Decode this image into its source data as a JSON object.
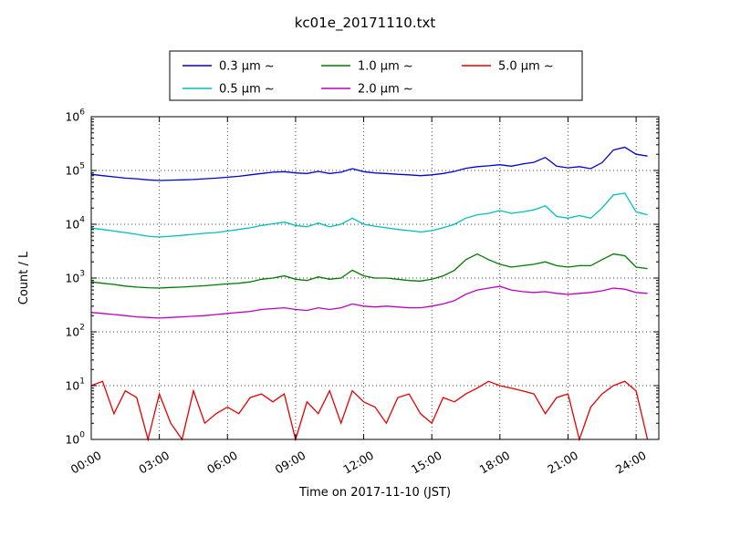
{
  "chart_data": {
    "type": "line",
    "title": "kc01e_20171110.txt",
    "xlabel": "Time on 2017-11-10 (JST)",
    "ylabel": "Count / L",
    "y_scale": "log",
    "ylim": [
      1,
      1000000
    ],
    "xlim": [
      0,
      25
    ],
    "grid": true,
    "legend_position": "top-center",
    "y_tick_exponents": [
      0,
      1,
      2,
      3,
      4,
      5,
      6
    ],
    "x_ticks": [
      {
        "value": 0,
        "label": "00:00"
      },
      {
        "value": 3,
        "label": "03:00"
      },
      {
        "value": 6,
        "label": "06:00"
      },
      {
        "value": 9,
        "label": "09:00"
      },
      {
        "value": 12,
        "label": "12:00"
      },
      {
        "value": 15,
        "label": "15:00"
      },
      {
        "value": 18,
        "label": "18:00"
      },
      {
        "value": 21,
        "label": "21:00"
      },
      {
        "value": 24,
        "label": "24:00"
      }
    ],
    "x": [
      0,
      0.5,
      1,
      1.5,
      2,
      2.5,
      3,
      3.5,
      4,
      4.5,
      5,
      5.5,
      6,
      6.5,
      7,
      7.5,
      8,
      8.5,
      9,
      9.5,
      10,
      10.5,
      11,
      11.5,
      12,
      12.5,
      13,
      13.5,
      14,
      14.5,
      15,
      15.5,
      16,
      16.5,
      17,
      17.5,
      18,
      18.5,
      19,
      19.5,
      20,
      20.5,
      21,
      21.5,
      22,
      22.5,
      23,
      23.5,
      24,
      24.5
    ],
    "series": [
      {
        "name": "0.3 µm ~",
        "color": "#0000dd",
        "values": [
          85000,
          80000,
          76000,
          72000,
          70000,
          67000,
          65000,
          66000,
          67000,
          68000,
          70000,
          72000,
          75000,
          78000,
          83000,
          88000,
          93000,
          95000,
          90000,
          88000,
          96000,
          88000,
          93000,
          108000,
          95000,
          90000,
          88000,
          85000,
          83000,
          80000,
          83000,
          88000,
          96000,
          110000,
          118000,
          122000,
          128000,
          120000,
          132000,
          142000,
          175000,
          120000,
          112000,
          118000,
          108000,
          140000,
          240000,
          270000,
          200000,
          185000
        ]
      },
      {
        "name": "0.5 µm ~",
        "color": "#00bfbf",
        "values": [
          8500,
          8000,
          7500,
          7000,
          6500,
          6000,
          5800,
          6000,
          6200,
          6500,
          6800,
          7000,
          7500,
          8000,
          8600,
          9500,
          10200,
          11000,
          9500,
          9000,
          10500,
          9000,
          10000,
          13000,
          10000,
          9200,
          8600,
          8000,
          7600,
          7200,
          7600,
          8600,
          10000,
          13000,
          15000,
          16000,
          18000,
          16000,
          17000,
          18500,
          22000,
          14000,
          13000,
          14500,
          13000,
          20000,
          35000,
          38000,
          17000,
          15000
        ]
      },
      {
        "name": "1.0 µm ~",
        "color": "#007a00",
        "values": [
          850,
          800,
          760,
          710,
          680,
          660,
          650,
          670,
          680,
          700,
          720,
          750,
          780,
          800,
          850,
          950,
          1000,
          1100,
          950,
          900,
          1050,
          950,
          1000,
          1400,
          1100,
          1000,
          1000,
          950,
          900,
          880,
          950,
          1100,
          1400,
          2200,
          2800,
          2200,
          1800,
          1600,
          1700,
          1800,
          2000,
          1700,
          1600,
          1700,
          1700,
          2200,
          2800,
          2600,
          1600,
          1500
        ]
      },
      {
        "name": "2.0 µm ~",
        "color": "#bf00bf",
        "values": [
          230,
          220,
          210,
          200,
          190,
          185,
          180,
          185,
          190,
          195,
          200,
          210,
          220,
          230,
          240,
          260,
          270,
          280,
          260,
          250,
          280,
          260,
          280,
          330,
          300,
          290,
          300,
          290,
          280,
          280,
          300,
          330,
          380,
          500,
          600,
          650,
          700,
          600,
          560,
          540,
          560,
          520,
          500,
          520,
          540,
          580,
          650,
          620,
          540,
          520
        ]
      },
      {
        "name": "5.0 µm ~",
        "color": "#e60000",
        "values": [
          10,
          12,
          3,
          8,
          6,
          1,
          7,
          2,
          1,
          8,
          2,
          3,
          4,
          3,
          6,
          7,
          5,
          7,
          1,
          5,
          3,
          8,
          2,
          8,
          5,
          4,
          2,
          6,
          7,
          3,
          2,
          6,
          5,
          7,
          9,
          12,
          10,
          9,
          8,
          7,
          3,
          6,
          7,
          1,
          4,
          7,
          10,
          12,
          8,
          1
        ]
      }
    ]
  }
}
